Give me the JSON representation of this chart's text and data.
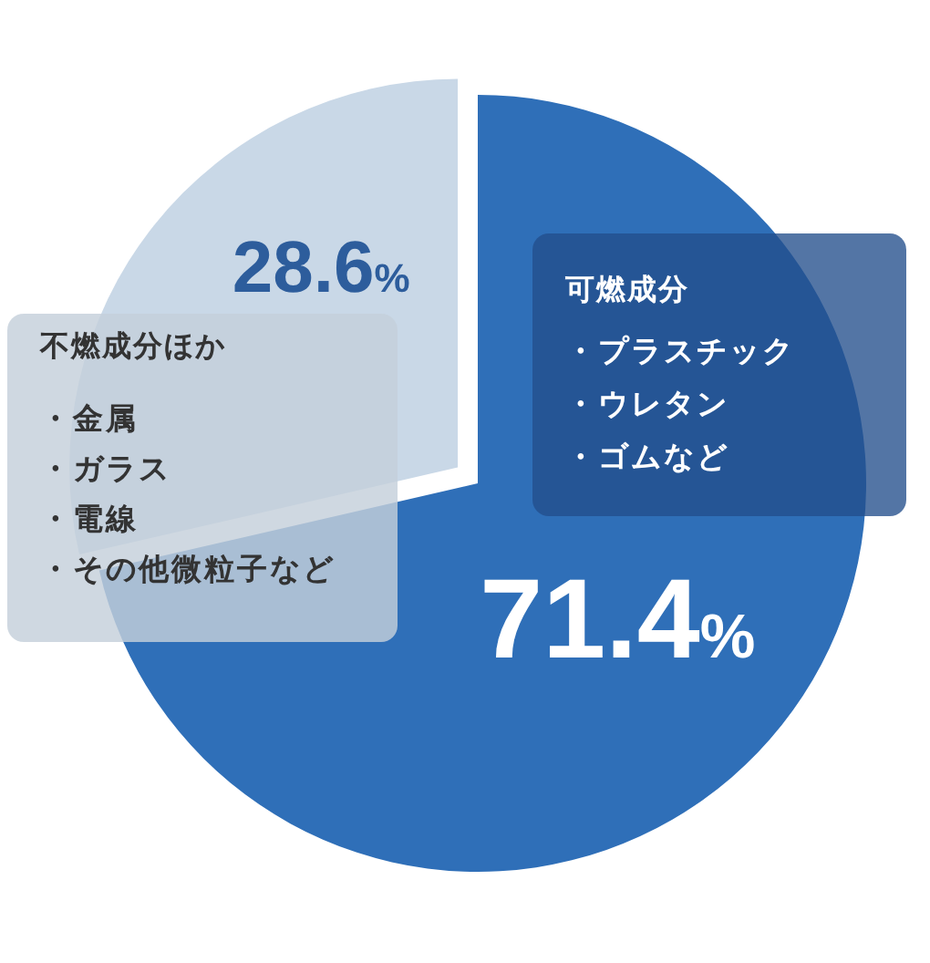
{
  "chart_data": {
    "type": "pie",
    "categories": [
      "可燃成分・プラスチック・ウレタン・ゴムなど",
      "不燃成分ほか・金属・ガラス・電線・その他微粒子など"
    ],
    "values": [
      71.4,
      28.6
    ],
    "colors": [
      "#2f6fb8",
      "#c9d8e7"
    ],
    "value_labels": [
      "71.4%",
      "28.6%"
    ]
  }
}
